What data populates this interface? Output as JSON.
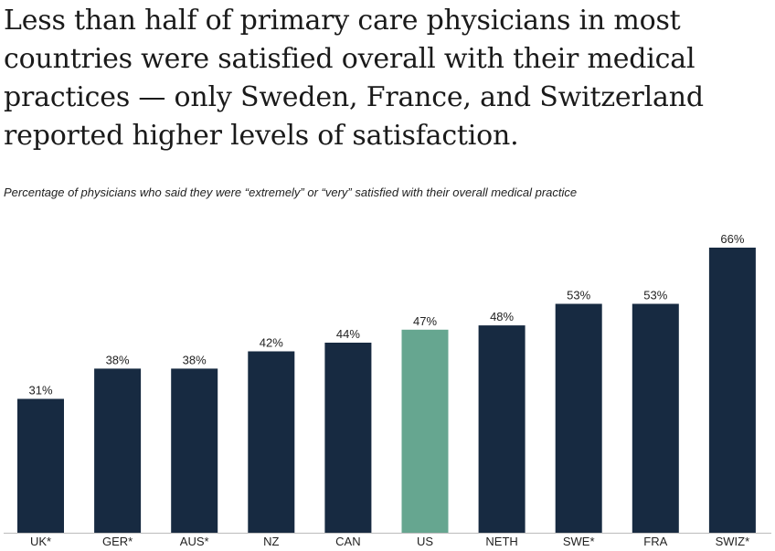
{
  "title": "Less than half of primary care physicians in most countries were satisfied overall with their medical practices — only Sweden, France, and Switzerland reported higher levels of satisfaction.",
  "subtitle": "Percentage of physicians who said they were “extremely” or “very” satisfied with their overall medical practice",
  "colors": {
    "bar": "#172a41",
    "highlight": "#66a690",
    "axis": "#bbbbbb",
    "text": "#222222"
  },
  "chart_data": {
    "type": "bar",
    "title": "Less than half of primary care physicians in most countries were satisfied overall with their medical practices — only Sweden, France, and Switzerland reported higher levels of satisfaction.",
    "subtitle": "Percentage of physicians who said they were “extremely” or “very” satisfied with their overall medical practice",
    "xlabel": "",
    "ylabel": "",
    "categories": [
      "UK*",
      "GER*",
      "AUS*",
      "NZ",
      "CAN",
      "US",
      "NETH",
      "SWE*",
      "FRA",
      "SWIZ*"
    ],
    "values": [
      31,
      38,
      38,
      42,
      44,
      47,
      48,
      53,
      53,
      66
    ],
    "value_labels": [
      "31%",
      "38%",
      "38%",
      "42%",
      "44%",
      "47%",
      "48%",
      "53%",
      "53%",
      "66%"
    ],
    "highlight": "US",
    "ylim": [
      0,
      66
    ],
    "grid": false
  }
}
